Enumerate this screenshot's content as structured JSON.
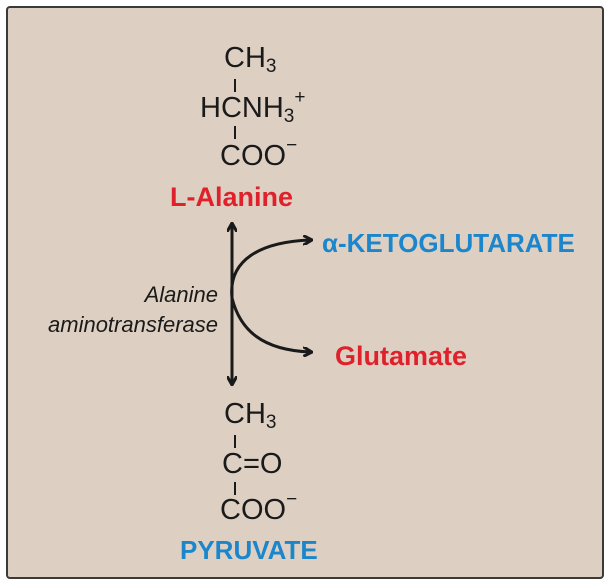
{
  "alanine": {
    "ch3": "CH",
    "ch3_sub": "3",
    "hcnh3_main": "HCNH",
    "hcnh3_sub": "3",
    "hcnh3_sup": "+",
    "coo": "COO",
    "coo_sup": "−",
    "name": "L-Alanine"
  },
  "enzyme": {
    "line1": "Alanine",
    "line2": "aminotransferase"
  },
  "cosubstrate": {
    "name": "α-KETOGLUTARATE"
  },
  "coproduct": {
    "name": "Glutamate"
  },
  "pyruvate": {
    "ch3": "CH",
    "ch3_sub": "3",
    "co": "C=O",
    "coo": "COO",
    "coo_sup": "−",
    "name": "PYRUVATE"
  },
  "colors": {
    "panel_bg": "#ddd0c3",
    "amino_red": "#e0202a",
    "keto_blue": "#1b86cc",
    "ink": "#1a1a1a"
  }
}
